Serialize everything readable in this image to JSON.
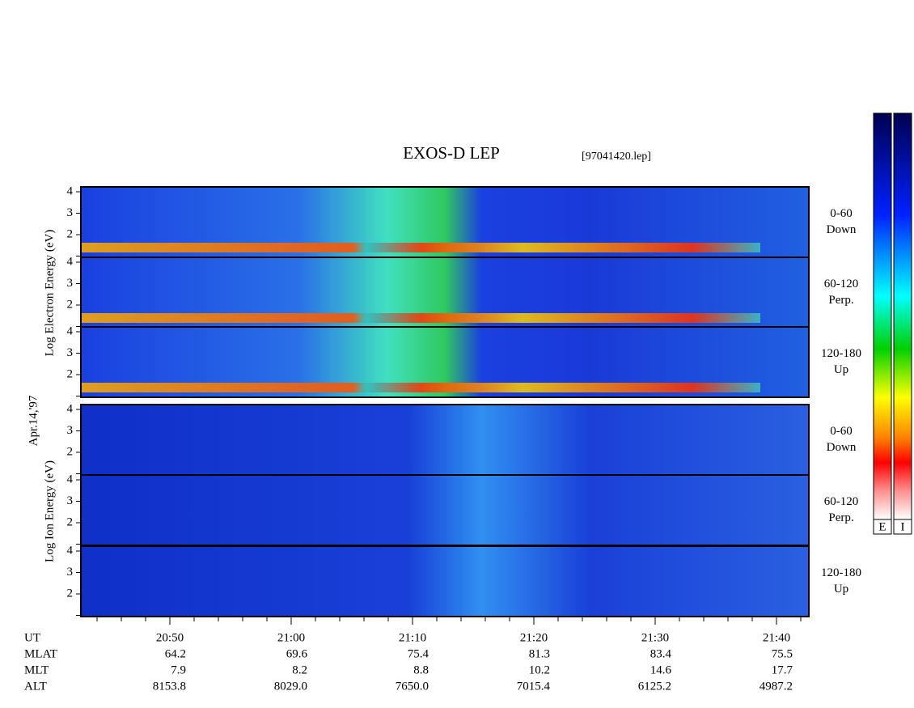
{
  "title": "EXOS-D LEP",
  "file": "[97041420.lep]",
  "date": "Apr.14,'97",
  "electron_axis_label": "Log  Electron  Energy (eV)",
  "ion_axis_label": "Log  Ion  Energy (eV)",
  "colorbar_labels": [
    "E",
    "I"
  ],
  "panels": [
    {
      "ticks": [
        "2",
        "3",
        "4"
      ],
      "label": [
        "0-60",
        "Down"
      ]
    },
    {
      "ticks": [
        "2",
        "3",
        "4"
      ],
      "label": [
        "60-120",
        "Perp."
      ]
    },
    {
      "ticks": [
        "2",
        "3",
        "4"
      ],
      "label": [
        "120-180",
        "Up"
      ]
    },
    {
      "ticks": [
        "2",
        "3",
        "4"
      ],
      "label": [
        "0-60",
        "Down"
      ]
    },
    {
      "ticks": [
        "2",
        "3",
        "4"
      ],
      "label": [
        "60-120",
        "Perp."
      ]
    },
    {
      "ticks": [
        "2",
        "3",
        "4"
      ],
      "label": [
        "120-180",
        "Up"
      ]
    }
  ],
  "time_rows": [
    {
      "name": "UT",
      "values": [
        "20:50",
        "21:00",
        "21:10",
        "21:20",
        "21:30",
        "21:40"
      ]
    },
    {
      "name": "MLAT",
      "values": [
        "64.2",
        "69.6",
        "75.4",
        "81.3",
        "83.4",
        "75.5"
      ]
    },
    {
      "name": "MLT",
      "values": [
        "7.9",
        "8.2",
        "8.8",
        "10.2",
        "14.6",
        "17.7"
      ]
    },
    {
      "name": "ALT",
      "values": [
        "8153.8",
        "8029.0",
        "7650.0",
        "7015.4",
        "6125.2",
        "4987.2"
      ]
    }
  ]
}
